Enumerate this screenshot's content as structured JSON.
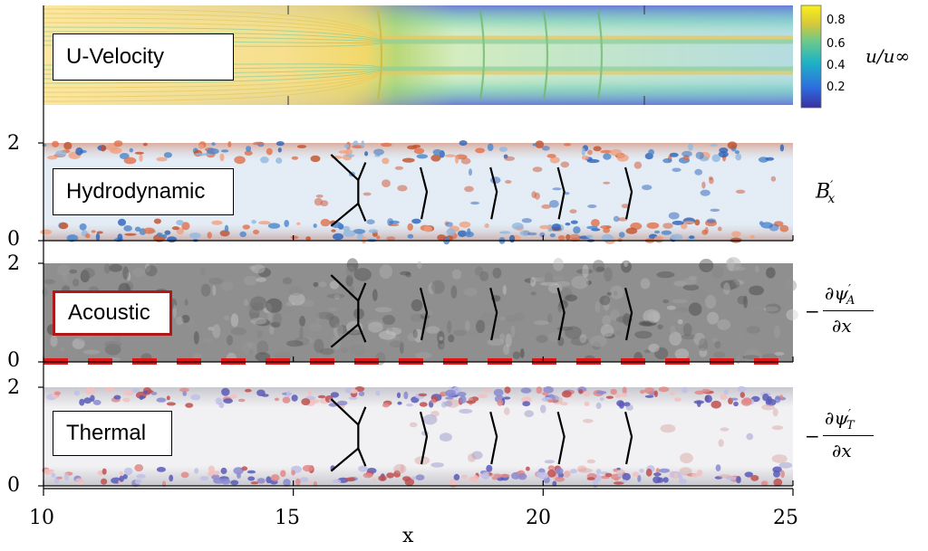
{
  "chart_data": [
    {
      "type": "heatmap",
      "panel_label": "U-Velocity",
      "colorbar_label": "u/u∞",
      "colorbar_ticks": [
        0.2,
        0.4,
        0.6,
        0.8
      ],
      "colorbar_range": [
        0.05,
        0.95
      ]
    },
    {
      "type": "heatmap",
      "panel_label": "Hydrodynamic",
      "side_label_base": "B",
      "side_label_sub": "x",
      "y_ticks": [
        0,
        2
      ]
    },
    {
      "type": "heatmap",
      "panel_label": "Acoustic",
      "side_label_num": "∂ψ",
      "side_label_sub": "A",
      "side_label_den": "∂x",
      "y_ticks": [
        0,
        2
      ]
    },
    {
      "type": "heatmap",
      "panel_label": "Thermal",
      "side_label_num": "∂ψ",
      "side_label_sub": "T",
      "side_label_den": "∂x",
      "y_ticks": [
        0,
        2
      ]
    }
  ],
  "x_axis": {
    "label": "x",
    "ticks": [
      10,
      15,
      20,
      25
    ],
    "range": [
      10,
      25
    ]
  },
  "y_range": [
    0,
    2
  ],
  "shock_x": [
    16.3,
    17.6,
    19.0,
    20.35,
    21.7
  ],
  "colors": {
    "red_dash": "#e01515",
    "red_border": "#b01818"
  }
}
